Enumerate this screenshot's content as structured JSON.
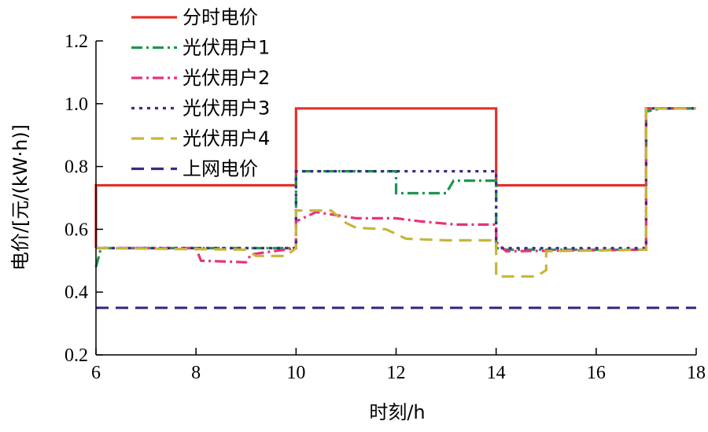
{
  "chart_data": {
    "type": "line",
    "xlabel": "时刻/h",
    "ylabel": "电价/[元/(kW·h)]",
    "xlim": [
      6,
      18
    ],
    "ylim": [
      0.2,
      1.2
    ],
    "x_ticks": [
      6,
      8,
      10,
      12,
      14,
      16,
      18
    ],
    "y_ticks": [
      0.2,
      0.4,
      0.6,
      0.8,
      1.0,
      1.2
    ],
    "x_tick_labels": [
      "6",
      "8",
      "10",
      "12",
      "14",
      "16",
      "18"
    ],
    "y_tick_labels": [
      "0.2",
      "0.4",
      "0.6",
      "0.8",
      "1.0",
      "1.2"
    ],
    "grid": false,
    "legend_position": "top-left",
    "series": [
      {
        "name": "分时电价",
        "color": "#e2312b",
        "style": "solid",
        "points": [
          [
            6,
            0.54
          ],
          [
            6,
            0.74
          ],
          [
            10,
            0.74
          ],
          [
            10,
            0.985
          ],
          [
            14,
            0.985
          ],
          [
            14,
            0.74
          ],
          [
            17,
            0.74
          ],
          [
            17,
            0.985
          ],
          [
            18,
            0.985
          ]
        ]
      },
      {
        "name": "光伏用户1",
        "color": "#1a9850",
        "style": "dashdot",
        "points": [
          [
            6,
            0.48
          ],
          [
            6.1,
            0.54
          ],
          [
            10,
            0.54
          ],
          [
            10,
            0.785
          ],
          [
            12,
            0.785
          ],
          [
            12,
            0.715
          ],
          [
            13,
            0.715
          ],
          [
            13.15,
            0.755
          ],
          [
            14,
            0.755
          ],
          [
            14,
            0.54
          ],
          [
            14.2,
            0.535
          ],
          [
            17,
            0.535
          ],
          [
            17,
            0.975
          ],
          [
            17.3,
            0.985
          ],
          [
            18,
            0.985
          ]
        ]
      },
      {
        "name": "光伏用户2",
        "color": "#e8327c",
        "style": "dashdot",
        "points": [
          [
            6,
            0.54
          ],
          [
            8,
            0.54
          ],
          [
            8.1,
            0.5
          ],
          [
            9,
            0.495
          ],
          [
            9.1,
            0.52
          ],
          [
            10,
            0.54
          ],
          [
            10,
            0.625
          ],
          [
            10.4,
            0.655
          ],
          [
            11,
            0.64
          ],
          [
            11.2,
            0.635
          ],
          [
            12,
            0.635
          ],
          [
            12.5,
            0.625
          ],
          [
            13.2,
            0.615
          ],
          [
            14,
            0.615
          ],
          [
            14,
            0.56
          ],
          [
            14.2,
            0.53
          ],
          [
            17,
            0.535
          ],
          [
            17,
            0.985
          ],
          [
            18,
            0.985
          ]
        ]
      },
      {
        "name": "光伏用户3",
        "color": "#3a2a86",
        "style": "dotted",
        "points": [
          [
            6,
            0.54
          ],
          [
            10,
            0.54
          ],
          [
            10,
            0.785
          ],
          [
            14,
            0.785
          ],
          [
            14,
            0.54
          ],
          [
            17,
            0.54
          ],
          [
            17,
            0.985
          ],
          [
            18,
            0.985
          ]
        ]
      },
      {
        "name": "光伏用户4",
        "color": "#c8b53c",
        "style": "dashed",
        "points": [
          [
            6,
            0.54
          ],
          [
            9,
            0.535
          ],
          [
            9.2,
            0.515
          ],
          [
            9.8,
            0.515
          ],
          [
            10,
            0.54
          ],
          [
            10,
            0.66
          ],
          [
            10.7,
            0.66
          ],
          [
            11,
            0.62
          ],
          [
            11.2,
            0.605
          ],
          [
            11.8,
            0.6
          ],
          [
            12.2,
            0.57
          ],
          [
            13,
            0.565
          ],
          [
            14,
            0.565
          ],
          [
            14,
            0.45
          ],
          [
            14.8,
            0.45
          ],
          [
            15,
            0.47
          ],
          [
            15,
            0.53
          ],
          [
            17,
            0.535
          ],
          [
            17,
            0.985
          ],
          [
            18,
            0.985
          ]
        ]
      },
      {
        "name": "上网电价",
        "color": "#3a2a86",
        "style": "dashed",
        "points": [
          [
            6,
            0.35
          ],
          [
            18,
            0.35
          ]
        ]
      }
    ]
  }
}
